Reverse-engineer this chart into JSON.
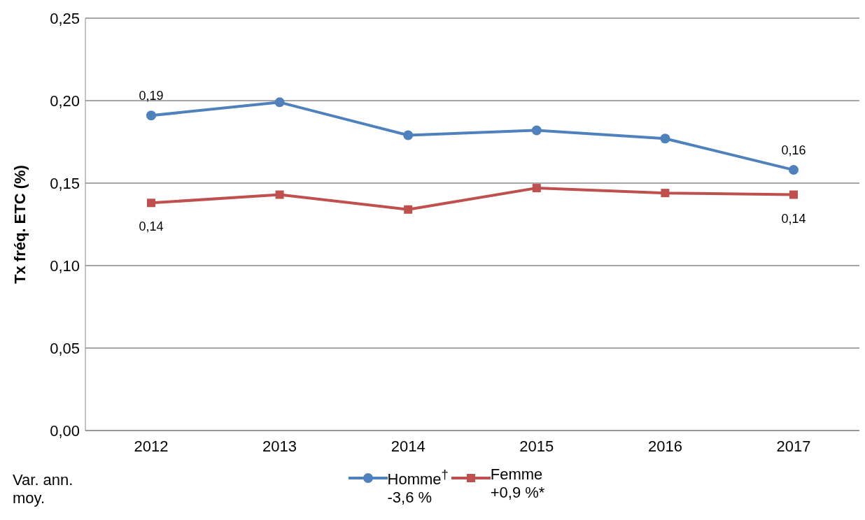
{
  "chart_data": {
    "type": "line",
    "ylabel": "Tx fréq. ETC (%)",
    "categories": [
      "2012",
      "2013",
      "2014",
      "2015",
      "2016",
      "2017"
    ],
    "series": [
      {
        "name": "Homme$^{†}$",
        "color": "#4f81bd",
        "values": [
          0.191,
          0.199,
          0.179,
          0.182,
          0.177,
          0.158
        ],
        "value_labels": [
          "0,19",
          null,
          null,
          null,
          null,
          "0,16"
        ]
      },
      {
        "name": "Femme",
        "color": "#c0504d",
        "marker": "square",
        "values": [
          0.138,
          0.143,
          0.134,
          0.147,
          0.144,
          0.143
        ],
        "value_labels": [
          "0,14",
          null,
          null,
          null,
          null,
          "0,14"
        ]
      }
    ],
    "ylim": [
      0,
      0.25
    ],
    "yticks": [
      {
        "value": 0,
        "label": "0,00"
      },
      {
        "value": 0.05,
        "label": "0,05"
      },
      {
        "value": 0.1,
        "label": "0,10"
      },
      {
        "value": 0.15,
        "label": "0,15"
      },
      {
        "value": 0.2,
        "label": "0,20"
      },
      {
        "value": 0.25,
        "label": "0,25"
      }
    ],
    "grid": "y",
    "legend": "bottom",
    "marker": "circle",
    "line_style": "solid",
    "annotations": [
      "Var. ann. moy.",
      "-3,6 %",
      "+0,9 %*"
    ]
  }
}
